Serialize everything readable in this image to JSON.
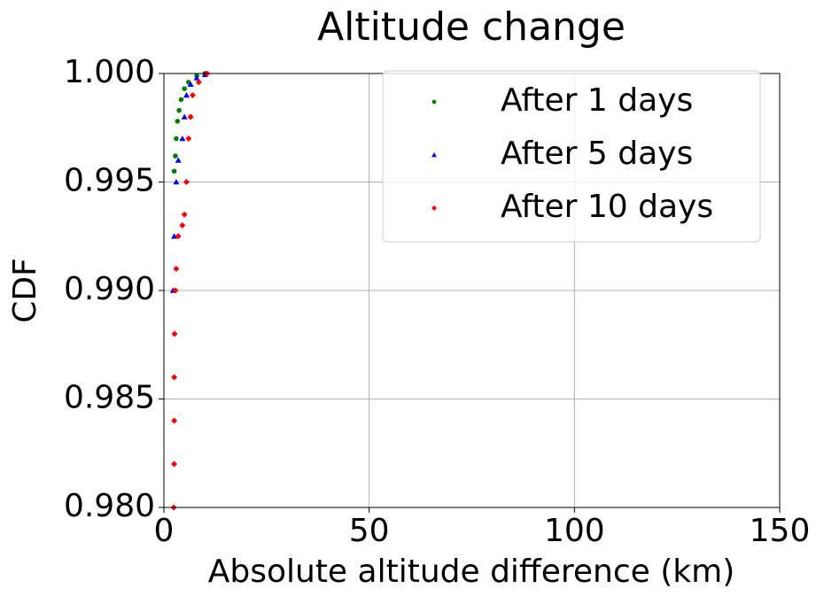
{
  "chart_data": {
    "type": "scatter",
    "title": "Altitude change",
    "x_label": "Absolute altitude difference (km)",
    "y_label": "CDF",
    "xlim": [
      0,
      150
    ],
    "xticks": [
      0,
      50,
      100,
      150
    ],
    "ylim": [
      0.98,
      1.0
    ],
    "yticks": [
      {
        "value": 0.98,
        "label": "0.980"
      },
      {
        "value": 0.985,
        "label": "0.985"
      },
      {
        "value": 0.99,
        "label": "0.990"
      },
      {
        "value": 0.995,
        "label": "0.995"
      },
      {
        "value": 1.0,
        "label": "1.000"
      }
    ],
    "grid": true,
    "legend": "upper right",
    "series": [
      {
        "name": "After 1 days",
        "color": "#008000",
        "marker": "circle",
        "x": [
          2.5,
          2.8,
          3,
          3.3,
          3.7,
          4.2,
          5,
          6,
          8,
          10
        ],
        "values": [
          0.9955,
          0.9962,
          0.997,
          0.9978,
          0.9983,
          0.9988,
          0.9993,
          0.9996,
          0.9999,
          1.0
        ]
      },
      {
        "name": "After 5 days",
        "color": "#0000ff",
        "marker": "triangle",
        "x": [
          2.2,
          2.5,
          3,
          3.5,
          4.5,
          5,
          5.5,
          6.5,
          8,
          10
        ],
        "values": [
          0.99,
          0.9925,
          0.995,
          0.996,
          0.997,
          0.998,
          0.999,
          0.9995,
          0.9998,
          0.99995
        ]
      },
      {
        "name": "After 10 days",
        "color": "#ff0000",
        "marker": "diamond",
        "x": [
          2.4,
          2.5,
          2.5,
          2.5,
          2.6,
          2.8,
          3,
          3.5,
          4.5,
          5,
          5.5,
          6,
          6.5,
          7,
          8.5,
          10.5
        ],
        "values": [
          0.98,
          0.982,
          0.984,
          0.986,
          0.988,
          0.99,
          0.991,
          0.9925,
          0.993,
          0.9935,
          0.995,
          0.997,
          0.998,
          0.999,
          0.9996,
          1.0
        ]
      }
    ]
  }
}
